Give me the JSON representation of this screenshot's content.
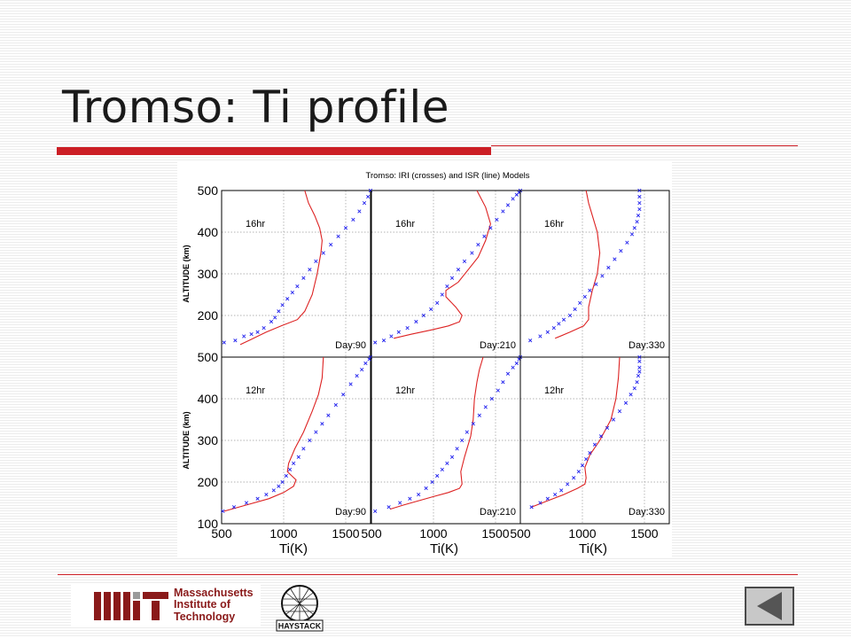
{
  "slide": {
    "title": "Tromso: Ti profile"
  },
  "figure": {
    "suptitle": "Tromso: IRI (crosses) and ISR (line) Models",
    "ylabel": "ALTITUDE (km)",
    "xlabel": "Ti(K)"
  },
  "footer": {
    "mit_text": [
      "Massachusetts",
      "Institute of",
      "Technology"
    ],
    "haystack_text": "HAYSTACK",
    "nav_back_icon": "back-arrow-icon"
  },
  "chart_data": [
    {
      "type": "line",
      "panel": "top-left",
      "hour_label": "16hr",
      "day_label": "Day:90",
      "xlim": [
        500,
        1700
      ],
      "ylim": [
        100,
        500
      ],
      "grid": true,
      "series": [
        {
          "style": "line",
          "color": "#dd2222",
          "x": [
            650,
            720,
            860,
            980,
            1110,
            1170,
            1230,
            1270,
            1300,
            1310,
            1290,
            1250,
            1200,
            1170
          ],
          "y": [
            130,
            140,
            160,
            175,
            190,
            210,
            250,
            300,
            350,
            380,
            410,
            440,
            470,
            500
          ]
        },
        {
          "style": "cross",
          "color": "#2222ee",
          "x": [
            520,
            610,
            680,
            740,
            790,
            840,
            900,
            930,
            960,
            990,
            1030,
            1070,
            1110,
            1160,
            1210,
            1260,
            1320,
            1380,
            1440,
            1500,
            1560,
            1610,
            1650,
            1680,
            1700
          ],
          "y": [
            135,
            140,
            150,
            155,
            160,
            170,
            185,
            195,
            210,
            225,
            240,
            255,
            270,
            290,
            310,
            330,
            350,
            370,
            390,
            410,
            430,
            450,
            470,
            485,
            500
          ]
        }
      ]
    },
    {
      "type": "line",
      "panel": "top-middle",
      "hour_label": "16hr",
      "day_label": "Day:210",
      "xlim": [
        500,
        1700
      ],
      "ylim": [
        100,
        500
      ],
      "grid": true,
      "series": [
        {
          "style": "line",
          "color": "#dd2222",
          "x": [
            680,
            820,
            980,
            1120,
            1210,
            1230,
            1180,
            1100,
            1100,
            1200,
            1280,
            1360,
            1420,
            1460,
            1420,
            1350
          ],
          "y": [
            145,
            155,
            165,
            175,
            185,
            200,
            220,
            245,
            260,
            280,
            310,
            340,
            380,
            420,
            460,
            500
          ]
        },
        {
          "style": "cross",
          "color": "#2222ee",
          "x": [
            530,
            600,
            660,
            720,
            790,
            860,
            920,
            980,
            1030,
            1070,
            1110,
            1150,
            1200,
            1250,
            1310,
            1360,
            1410,
            1460,
            1510,
            1560,
            1600,
            1640,
            1670,
            1690,
            1700
          ],
          "y": [
            135,
            140,
            150,
            160,
            170,
            185,
            200,
            215,
            230,
            250,
            270,
            290,
            310,
            330,
            350,
            370,
            390,
            410,
            430,
            450,
            465,
            480,
            490,
            495,
            500
          ]
        }
      ]
    },
    {
      "type": "line",
      "panel": "top-right",
      "hour_label": "16hr",
      "day_label": "Day:330",
      "xlim": [
        500,
        1700
      ],
      "ylim": [
        100,
        500
      ],
      "grid": true,
      "series": [
        {
          "style": "line",
          "color": "#dd2222",
          "x": [
            780,
            900,
            1010,
            1050,
            1050,
            1080,
            1120,
            1140,
            1120,
            1080,
            1050,
            1030
          ],
          "y": [
            145,
            160,
            175,
            190,
            220,
            260,
            300,
            350,
            400,
            440,
            470,
            500
          ]
        },
        {
          "style": "cross",
          "color": "#2222ee",
          "x": [
            580,
            660,
            720,
            770,
            810,
            850,
            900,
            940,
            980,
            1020,
            1060,
            1110,
            1160,
            1210,
            1260,
            1310,
            1360,
            1400,
            1420,
            1440,
            1450,
            1460,
            1460,
            1460,
            1460
          ],
          "y": [
            140,
            150,
            160,
            170,
            180,
            190,
            200,
            215,
            230,
            245,
            260,
            275,
            295,
            315,
            335,
            355,
            375,
            395,
            410,
            425,
            440,
            455,
            470,
            485,
            500
          ]
        }
      ]
    },
    {
      "type": "line",
      "panel": "bottom-left",
      "hour_label": "12hr",
      "day_label": "Day:90",
      "xlim": [
        500,
        1700
      ],
      "ylim": [
        100,
        500
      ],
      "grid": true,
      "series": [
        {
          "style": "line",
          "color": "#dd2222",
          "x": [
            520,
            700,
            880,
            1000,
            1080,
            1100,
            1030,
            1040,
            1090,
            1160,
            1230,
            1280,
            1310,
            1320
          ],
          "y": [
            130,
            145,
            160,
            175,
            190,
            205,
            225,
            245,
            280,
            320,
            370,
            410,
            450,
            500
          ]
        },
        {
          "style": "cross",
          "color": "#2222ee",
          "x": [
            510,
            600,
            700,
            790,
            860,
            920,
            960,
            990,
            1020,
            1050,
            1080,
            1120,
            1160,
            1210,
            1260,
            1310,
            1360,
            1420,
            1480,
            1540,
            1590,
            1630,
            1660,
            1690,
            1700
          ],
          "y": [
            130,
            140,
            150,
            160,
            170,
            180,
            190,
            200,
            215,
            230,
            245,
            260,
            280,
            300,
            320,
            340,
            360,
            385,
            410,
            435,
            455,
            470,
            485,
            495,
            500
          ]
        }
      ]
    },
    {
      "type": "line",
      "panel": "bottom-middle",
      "hour_label": "12hr",
      "day_label": "Day:210",
      "xlim": [
        500,
        1700
      ],
      "ylim": [
        100,
        500
      ],
      "grid": true,
      "series": [
        {
          "style": "line",
          "color": "#dd2222",
          "x": [
            650,
            760,
            880,
            1000,
            1120,
            1210,
            1230,
            1220,
            1250,
            1300,
            1320,
            1330,
            1350,
            1370,
            1400
          ],
          "y": [
            135,
            145,
            155,
            165,
            175,
            185,
            195,
            225,
            260,
            310,
            350,
            400,
            440,
            470,
            500
          ]
        },
        {
          "style": "cross",
          "color": "#2222ee",
          "x": [
            530,
            640,
            730,
            810,
            880,
            940,
            990,
            1030,
            1070,
            1110,
            1150,
            1190,
            1230,
            1270,
            1320,
            1370,
            1420,
            1470,
            1520,
            1560,
            1600,
            1640,
            1670,
            1690,
            1700
          ],
          "y": [
            130,
            140,
            150,
            160,
            170,
            185,
            200,
            215,
            230,
            245,
            260,
            280,
            300,
            320,
            340,
            360,
            380,
            400,
            420,
            440,
            460,
            475,
            485,
            495,
            500
          ]
        }
      ]
    },
    {
      "type": "line",
      "panel": "bottom-right",
      "hour_label": "12hr",
      "day_label": "Day:330",
      "xlim": [
        500,
        1700
      ],
      "ylim": [
        100,
        500
      ],
      "grid": true,
      "series": [
        {
          "style": "line",
          "color": "#dd2222",
          "x": [
            590,
            720,
            850,
            960,
            1020,
            1030,
            1020,
            1060,
            1140,
            1230,
            1270,
            1290,
            1300
          ],
          "y": [
            140,
            155,
            170,
            185,
            195,
            210,
            235,
            265,
            300,
            350,
            400,
            450,
            500
          ]
        },
        {
          "style": "cross",
          "color": "#2222ee",
          "x": [
            590,
            660,
            720,
            780,
            830,
            880,
            930,
            970,
            1000,
            1030,
            1060,
            1100,
            1150,
            1200,
            1250,
            1300,
            1350,
            1390,
            1420,
            1440,
            1450,
            1460,
            1460,
            1460,
            1460
          ],
          "y": [
            140,
            150,
            160,
            170,
            180,
            195,
            210,
            225,
            240,
            255,
            270,
            290,
            310,
            330,
            350,
            370,
            390,
            410,
            425,
            440,
            455,
            465,
            475,
            490,
            500
          ]
        }
      ]
    }
  ]
}
